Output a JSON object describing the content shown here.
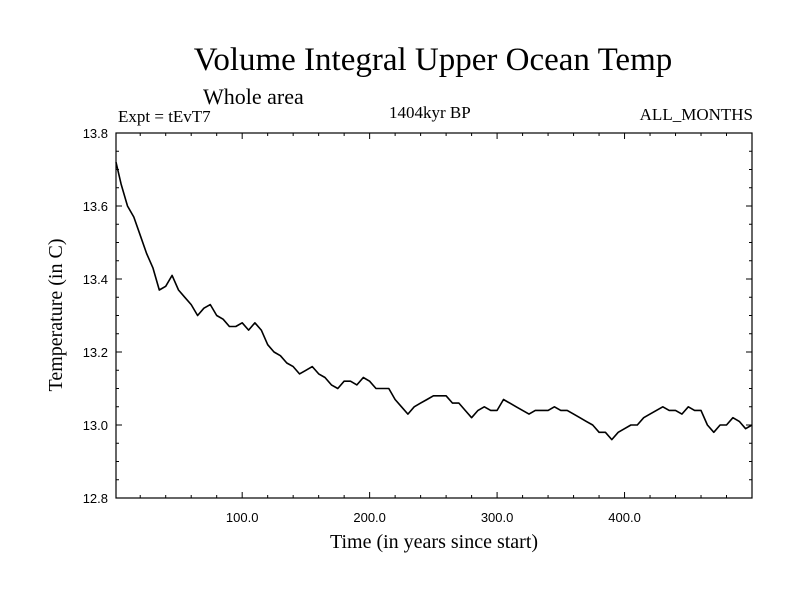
{
  "chart_data": {
    "type": "line",
    "title": "Volume Integral Upper Ocean Temp",
    "subtitle": "Whole area",
    "annotations": {
      "left": "Expt = tEvT7",
      "center": "1404kyr BP",
      "right": "ALL_MONTHS"
    },
    "xlabel": "Time (in years since start)",
    "ylabel": "Temperature (in C)",
    "xlim": [
      1,
      500
    ],
    "ylim": [
      12.8,
      13.8
    ],
    "x_ticks": [
      100,
      200,
      300,
      400
    ],
    "x_tick_labels": [
      "100.0",
      "200.0",
      "300.0",
      "400.0"
    ],
    "y_ticks": [
      12.8,
      13.0,
      13.2,
      13.4,
      13.6,
      13.8
    ],
    "y_tick_labels": [
      "12.8",
      "13.0",
      "13.2",
      "13.4",
      "13.6",
      "13.8"
    ],
    "grid": false,
    "series": [
      {
        "name": "Upper Ocean Temp",
        "color": "#000000",
        "x": [
          1,
          5,
          10,
          15,
          20,
          25,
          30,
          35,
          40,
          45,
          50,
          55,
          60,
          65,
          70,
          75,
          80,
          85,
          90,
          95,
          100,
          105,
          110,
          115,
          120,
          125,
          130,
          135,
          140,
          145,
          150,
          155,
          160,
          165,
          170,
          175,
          180,
          185,
          190,
          195,
          200,
          205,
          210,
          215,
          220,
          225,
          230,
          235,
          240,
          245,
          250,
          255,
          260,
          265,
          270,
          275,
          280,
          285,
          290,
          295,
          300,
          305,
          310,
          315,
          320,
          325,
          330,
          335,
          340,
          345,
          350,
          355,
          360,
          365,
          370,
          375,
          380,
          385,
          390,
          395,
          400,
          405,
          410,
          415,
          420,
          425,
          430,
          435,
          440,
          445,
          450,
          455,
          460,
          465,
          470,
          475,
          480,
          485,
          490,
          495,
          500
        ],
        "y": [
          13.72,
          13.66,
          13.6,
          13.57,
          13.52,
          13.47,
          13.43,
          13.37,
          13.38,
          13.41,
          13.37,
          13.35,
          13.33,
          13.3,
          13.32,
          13.33,
          13.3,
          13.29,
          13.27,
          13.27,
          13.28,
          13.26,
          13.28,
          13.26,
          13.22,
          13.2,
          13.19,
          13.17,
          13.16,
          13.14,
          13.15,
          13.16,
          13.14,
          13.13,
          13.11,
          13.1,
          13.12,
          13.12,
          13.11,
          13.13,
          13.12,
          13.1,
          13.1,
          13.1,
          13.07,
          13.05,
          13.03,
          13.05,
          13.06,
          13.07,
          13.08,
          13.08,
          13.08,
          13.06,
          13.06,
          13.04,
          13.02,
          13.04,
          13.05,
          13.04,
          13.04,
          13.07,
          13.06,
          13.05,
          13.04,
          13.03,
          13.04,
          13.04,
          13.04,
          13.05,
          13.04,
          13.04,
          13.03,
          13.02,
          13.01,
          13.0,
          12.98,
          12.98,
          12.96,
          12.98,
          12.99,
          13.0,
          13.0,
          13.02,
          13.03,
          13.04,
          13.05,
          13.04,
          13.04,
          13.03,
          13.05,
          13.04,
          13.04,
          13.0,
          12.98,
          13.0,
          13.0,
          13.02,
          13.01,
          12.99,
          13.0
        ]
      }
    ]
  }
}
